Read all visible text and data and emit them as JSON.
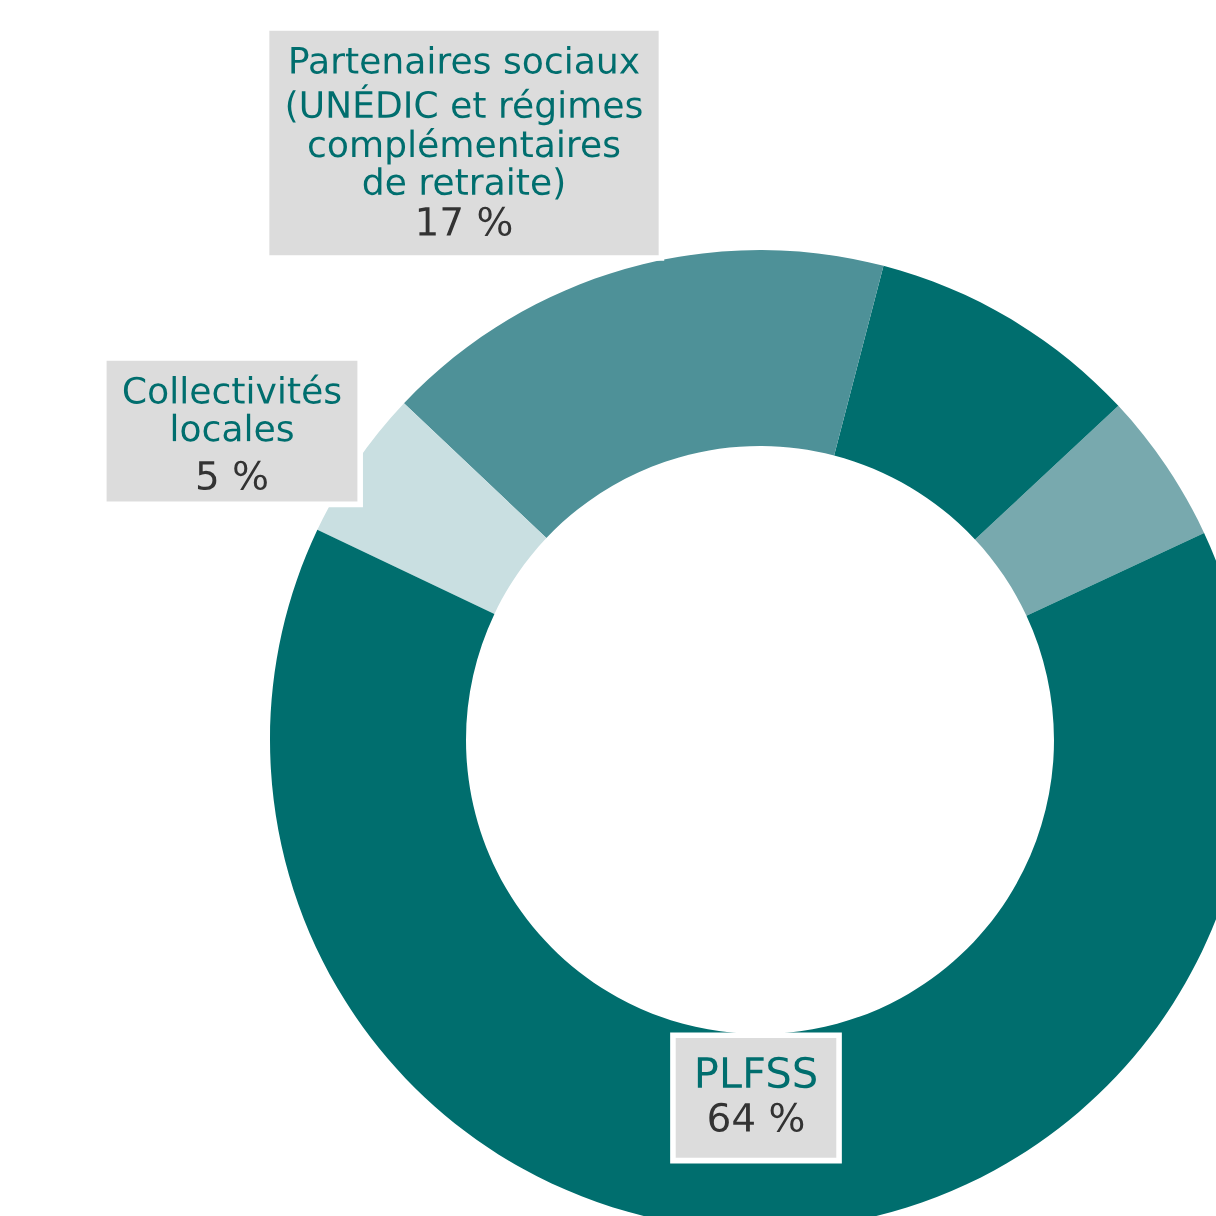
{
  "chart_data": {
    "type": "donut",
    "categories": [
      null,
      null,
      "Partenaires sociaux\n(UNÉDIC et régimes\ncomplémentaires\nde retraite)",
      "Collectivités\nlocales",
      "PLFSS"
    ],
    "values": [
      5,
      9,
      17,
      5,
      64
    ],
    "value_labels": [
      null,
      null,
      "17 %",
      "5 %",
      "64 %"
    ],
    "colors": [
      "#78a9ae",
      "#006e6e",
      "#4e9198",
      "#c9dfe1",
      "#006e6e"
    ],
    "legend": false
  }
}
